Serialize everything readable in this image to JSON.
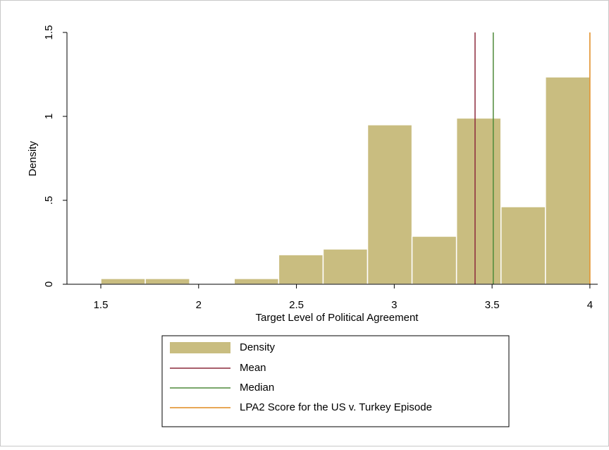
{
  "chart_data": {
    "type": "histogram",
    "xlabel": "Target Level of Political Agreement",
    "ylabel": "Density",
    "name": "Density",
    "color": "#c9bd80",
    "bins": [
      1.5,
      1.7273,
      1.9545,
      2.1818,
      2.4091,
      2.6364,
      2.8636,
      3.0909,
      3.3182,
      3.5455,
      3.7727,
      4
    ],
    "values": [
      0.034,
      0.034,
      0,
      0.034,
      0.176,
      0.21,
      0.95,
      0.286,
      0.99,
      0.462,
      1.235
    ],
    "lines": [
      {
        "name": "Mean",
        "color": "#8c2a3c",
        "value": 3.413
      },
      {
        "name": "Median",
        "color": "#4f8a3a",
        "value": 3.506
      },
      {
        "name": "LPA2 Score for the US v. Turkey Episode",
        "color": "#e08a1e",
        "value": 4
      }
    ],
    "xlim": [
      1.327,
      4.04
    ],
    "ylim": [
      0,
      1.5
    ],
    "xticks": [
      1.5,
      2,
      2.5,
      3,
      3.5,
      4
    ],
    "yticks": [
      0,
      {
        "value": 0.5,
        "label": ".5"
      },
      1,
      1.5
    ]
  }
}
